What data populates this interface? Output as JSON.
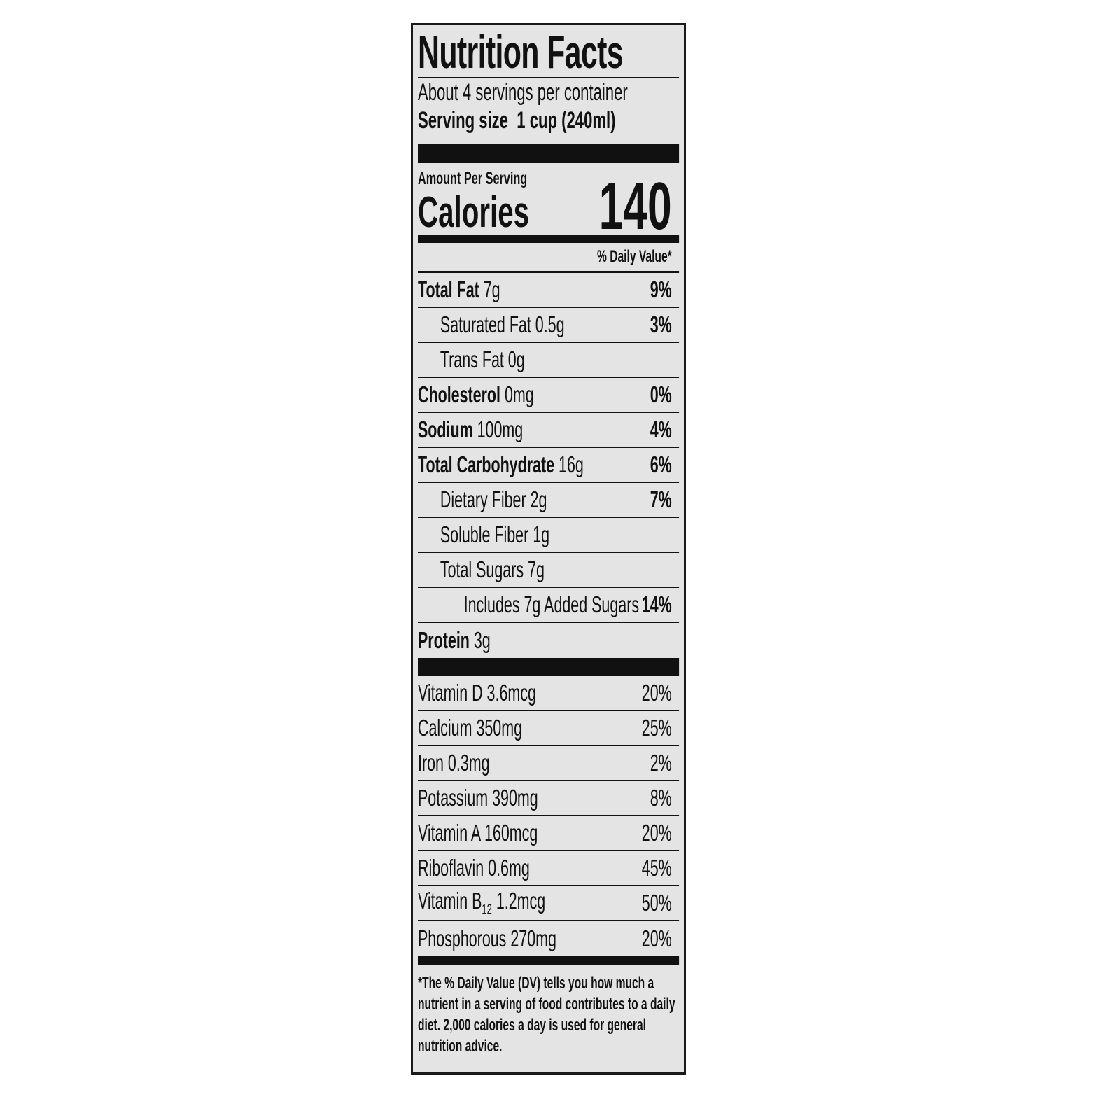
{
  "title": "Nutrition Facts",
  "servings": "About 4 servings per container",
  "serving_size": {
    "label": "Serving size",
    "value": "1 cup (240ml)"
  },
  "amount_per_serving": "Amount Per Serving",
  "calories": {
    "label": "Calories",
    "value": 140
  },
  "daily_value_header": "% Daily Value*",
  "nutrients": [
    {
      "name": "Total Fat",
      "amount": "7g",
      "dv": "9%"
    },
    {
      "name": "Saturated Fat",
      "amount": "0.5g",
      "dv": "3%"
    },
    {
      "name": "Trans Fat",
      "amount": "0g"
    },
    {
      "name": "Cholesterol",
      "amount": "0mg",
      "dv": "0%"
    },
    {
      "name": "Sodium",
      "amount": "100mg",
      "dv": "4%"
    },
    {
      "name": "Total Carbohydrate",
      "amount": "16g",
      "dv": "6%"
    },
    {
      "name": "Dietary Fiber",
      "amount": "2g",
      "dv": "7%"
    },
    {
      "name": "Soluble Fiber",
      "amount": "1g"
    },
    {
      "name": "Total Sugars",
      "amount": "7g"
    },
    {
      "name": "Includes 7g Added Sugars",
      "dv": "14%"
    },
    {
      "name": "Protein",
      "amount": "3g"
    }
  ],
  "vitamins": [
    {
      "name": "Vitamin D",
      "amount": "3.6mcg",
      "dv": "20%"
    },
    {
      "name": "Calcium",
      "amount": "350mg",
      "dv": "25%"
    },
    {
      "name": "Iron",
      "amount": "0.3mg",
      "dv": "2%"
    },
    {
      "name": "Potassium",
      "amount": "390mg",
      "dv": "8%"
    },
    {
      "name": "Vitamin A",
      "amount": "160mcg",
      "dv": "20%"
    },
    {
      "name": "Riboflavin",
      "amount": "0.6mg",
      "dv": "45%"
    },
    {
      "name": "Vitamin B",
      "subscript": "12",
      "amount": "1.2mcg",
      "dv": "50%"
    },
    {
      "name": "Phosphorous",
      "amount": "270mg",
      "dv": "20%"
    }
  ],
  "footnote": "*The % Daily Value (DV) tells you how much a nutrient in a serving of food contributes to a daily diet. 2,000 calories a day is used for general nutrition advice."
}
